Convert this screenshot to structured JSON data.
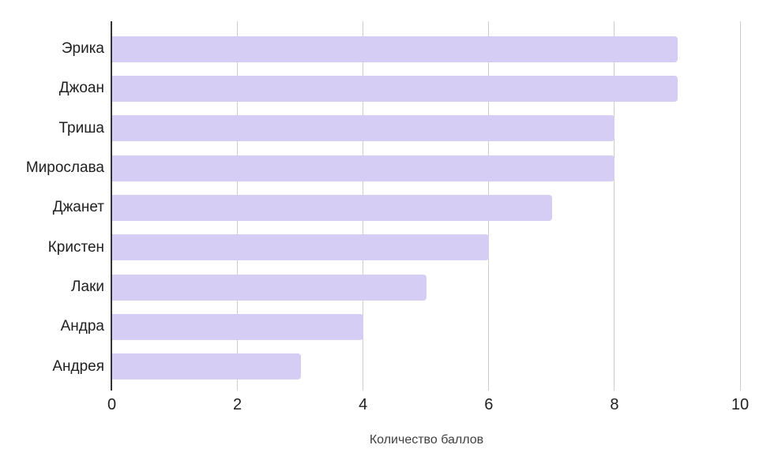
{
  "chart_data": {
    "type": "bar",
    "orientation": "horizontal",
    "title": "",
    "categories": [
      "Эрика",
      "Джоан",
      "Триша",
      "Мирослава",
      "Джанет",
      "Кристен",
      "Лаки",
      "Андра",
      "Андрея"
    ],
    "values": [
      9,
      9,
      8,
      8,
      7,
      6,
      5,
      4,
      3
    ],
    "xlabel": "Количество баллов",
    "ylabel": "",
    "xlim": [
      0,
      10
    ],
    "xticks": [
      0,
      2,
      4,
      6,
      8,
      10
    ],
    "grid": "vertical-gridlines-on",
    "legend": "none",
    "colors": {
      "bar": "#d6cdf4",
      "gridline": "#cccccc",
      "axis_line": "#333333",
      "tick_label": "#212121",
      "category_label": "#212121",
      "axis_title": "#404040",
      "background": "#ffffff"
    }
  }
}
